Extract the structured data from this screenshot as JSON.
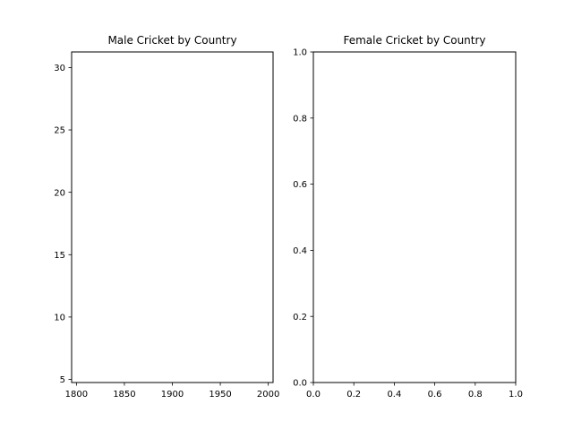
{
  "chart_data": [
    {
      "type": "line",
      "title": "Male Cricket by Country",
      "xlabel": "",
      "ylabel": "",
      "xlim": [
        1795,
        2005
      ],
      "ylim": [
        4.75,
        31.25
      ],
      "x_ticks": [
        1800,
        1850,
        1900,
        1950,
        2000
      ],
      "x_tick_labels": [
        "1800",
        "1850",
        "1900",
        "1950",
        "2000"
      ],
      "y_ticks": [
        5,
        10,
        15,
        20,
        25,
        30
      ],
      "y_tick_labels": [
        "5",
        "10",
        "15",
        "20",
        "25",
        "30"
      ],
      "series": [],
      "grid": false,
      "legend": "none"
    },
    {
      "type": "line",
      "title": "Female Cricket by Country",
      "xlabel": "",
      "ylabel": "",
      "xlim": [
        0,
        1
      ],
      "ylim": [
        0,
        1
      ],
      "x_ticks": [
        0,
        0.2,
        0.4,
        0.6,
        0.8,
        1
      ],
      "x_tick_labels": [
        "0.0",
        "0.2",
        "0.4",
        "0.6",
        "0.8",
        "1.0"
      ],
      "y_ticks": [
        0,
        0.2,
        0.4,
        0.6,
        0.8,
        1
      ],
      "y_tick_labels": [
        "0.0",
        "0.2",
        "0.4",
        "0.6",
        "0.8",
        "1.0"
      ],
      "series": [],
      "grid": false,
      "legend": "none"
    }
  ]
}
